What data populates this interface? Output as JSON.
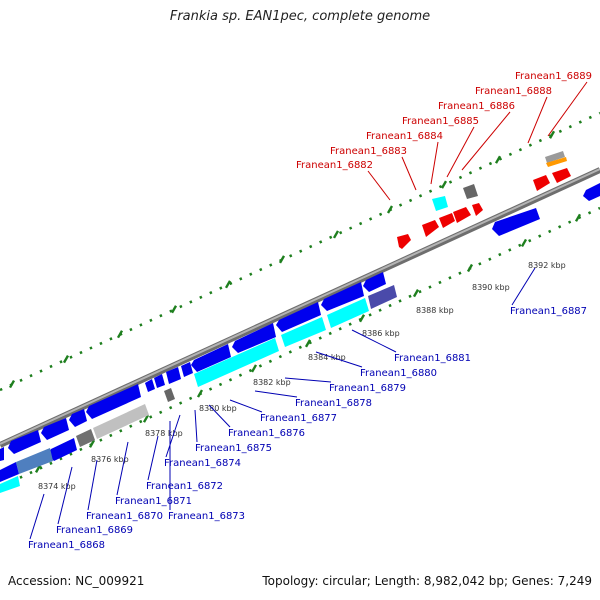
{
  "title": "Frankia sp. EAN1pec, complete genome",
  "footer": {
    "accession": "Accession: NC_009921",
    "info": "Topology: circular; Length: 8,982,042 bp; Genes: 7,249"
  },
  "colors": {
    "forward_gene": "#ff0000",
    "reverse_gene": "#0000ee",
    "rna": "#00ffff",
    "pseudo": "#808080",
    "backbone": "#888888",
    "tick": "#1e7f1e",
    "forward_label": "#cc0000",
    "reverse_label": "#0000b3"
  },
  "kbp_ticks": [
    "8374 kbp",
    "8376 kbp",
    "8378 kbp",
    "8380 kbp",
    "8382 kbp",
    "8384 kbp",
    "8386 kbp",
    "8388 kbp",
    "8390 kbp",
    "8392 kbp"
  ],
  "forward_labels": [
    "Franean1_6882",
    "Franean1_6883",
    "Franean1_6884",
    "Franean1_6885",
    "Franean1_6886",
    "Franean1_6888",
    "Franean1_6889"
  ],
  "reverse_labels": [
    "Franean1_6868",
    "Franean1_6869",
    "Franean1_6870",
    "Franean1_6871",
    "Franean1_6872",
    "Franean1_6873",
    "Franean1_6874",
    "Franean1_6875",
    "Franean1_6876",
    "Franean1_6877",
    "Franean1_6878",
    "Franean1_6879",
    "Franean1_6880",
    "Franean1_6881",
    "Franean1_6887"
  ]
}
